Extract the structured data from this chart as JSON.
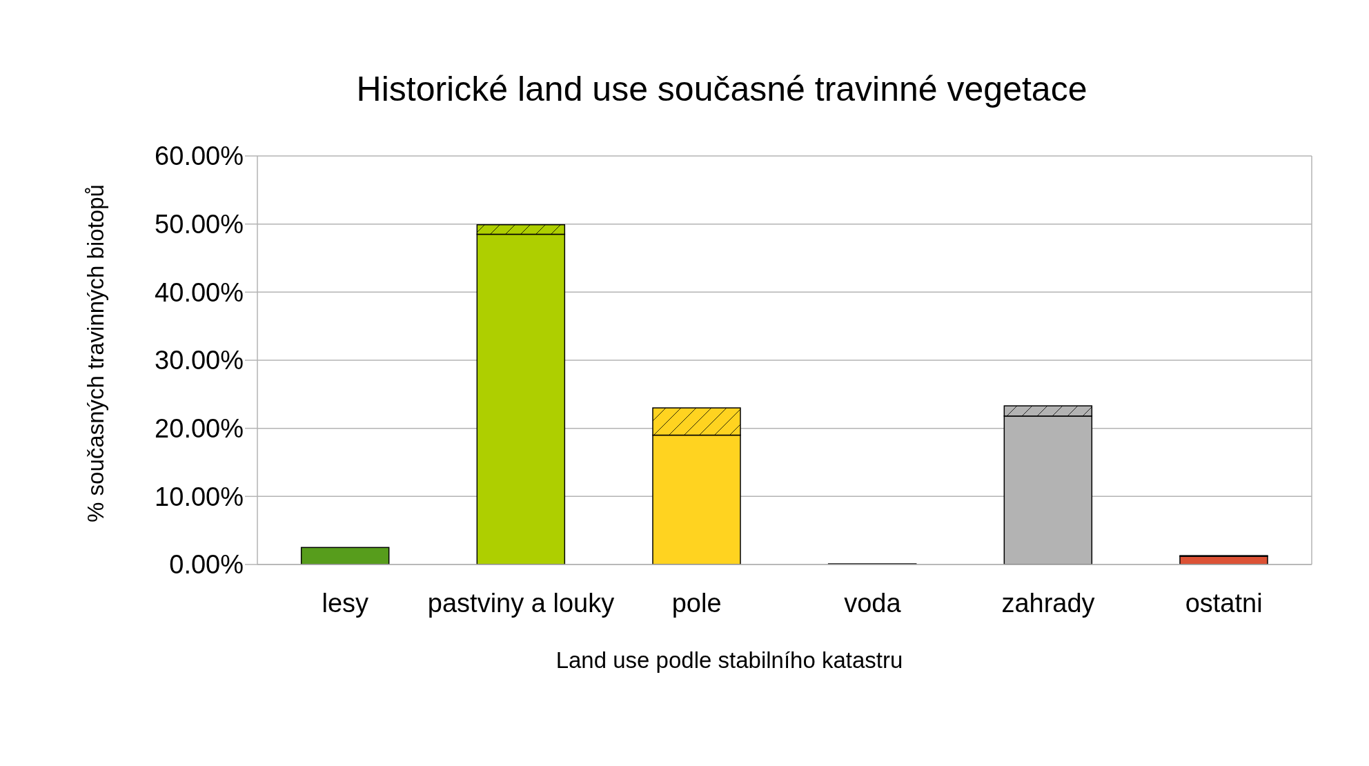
{
  "chart_data": {
    "type": "bar",
    "stacked": true,
    "title": "Historické land use současné travinné vegetace",
    "xlabel": "Land use podle stabilního katastru",
    "ylabel": "% současných travinných biotopů",
    "categories": [
      "lesy",
      "pastviny a louky",
      "pole",
      "voda",
      "zahrady",
      "ostatni"
    ],
    "series": [
      {
        "colors": [
          "#579d1c",
          "#aecf00",
          "#ffd320",
          "#7e0021",
          "#b3b3b3",
          "#dc5235"
        ],
        "values": [
          2.5,
          48.5,
          19.0,
          0.1,
          21.8,
          1.2
        ]
      },
      {
        "colors": [
          "#579d1c",
          "#aecf00",
          "#ffd320",
          "#7e0021",
          "#b3b3b3",
          "#dc5235"
        ],
        "values": [
          0,
          1.4,
          4.0,
          0,
          1.5,
          0.1
        ]
      }
    ],
    "ylim": [
      0,
      60
    ],
    "yticks": [
      {
        "value": 0,
        "label": "0.00%"
      },
      {
        "value": 10,
        "label": "10.00%"
      },
      {
        "value": 20,
        "label": "20.00%"
      },
      {
        "value": 30,
        "label": "30.00%"
      },
      {
        "value": 40,
        "label": "40.00%"
      },
      {
        "value": 50,
        "label": "50.00%"
      },
      {
        "value": 60,
        "label": "60.00%"
      }
    ],
    "grid": "y"
  }
}
